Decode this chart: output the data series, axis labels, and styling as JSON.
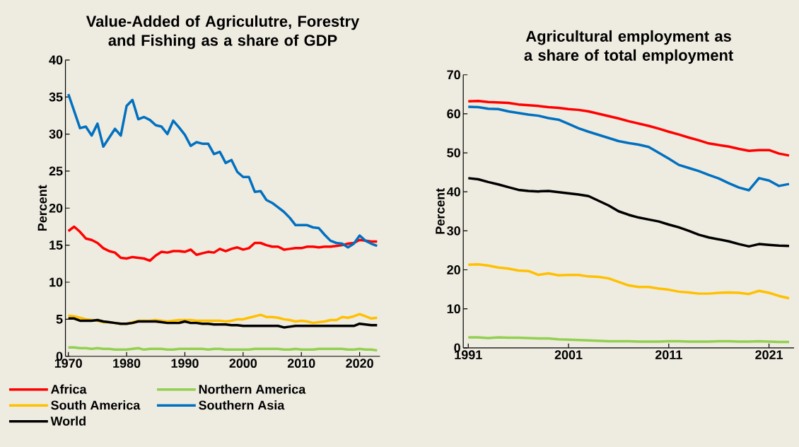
{
  "chart_data": [
    {
      "type": "line",
      "title": "Value-Added of Agriculutre, Forestry and Fishing as a share of GDP",
      "ylabel": "Percent",
      "legend": "bottom",
      "x": [
        1970,
        1971,
        1972,
        1973,
        1974,
        1975,
        1976,
        1977,
        1978,
        1979,
        1980,
        1981,
        1982,
        1983,
        1984,
        1985,
        1986,
        1987,
        1988,
        1989,
        1990,
        1991,
        1992,
        1993,
        1994,
        1995,
        1996,
        1997,
        1998,
        1999,
        2000,
        2001,
        2002,
        2003,
        2004,
        2005,
        2006,
        2007,
        2008,
        2009,
        2010,
        2011,
        2012,
        2013,
        2014,
        2015,
        2016,
        2017,
        2018,
        2019,
        2020,
        2021,
        2022,
        2023
      ],
      "xlim": [
        1969.5,
        2023.5
      ],
      "xticks": [
        1970,
        1980,
        1990,
        2000,
        2010,
        2020
      ],
      "ylim": [
        0,
        40
      ],
      "yticks": [
        0,
        5,
        10,
        15,
        20,
        25,
        30,
        35,
        40
      ],
      "series": [
        {
          "name": "Africa",
          "color": "#ff0000",
          "values": [
            16.9,
            17.5,
            16.8,
            15.9,
            15.7,
            15.3,
            14.6,
            14.2,
            14.0,
            13.3,
            13.2,
            13.4,
            13.3,
            13.2,
            12.9,
            13.6,
            14.1,
            14.0,
            14.2,
            14.2,
            14.1,
            14.4,
            13.7,
            13.9,
            14.1,
            14.0,
            14.5,
            14.2,
            14.5,
            14.7,
            14.4,
            14.6,
            15.3,
            15.3,
            15.0,
            14.8,
            14.8,
            14.4,
            14.5,
            14.6,
            14.6,
            14.8,
            14.8,
            14.7,
            14.8,
            14.8,
            14.9,
            15.0,
            15.2,
            15.3,
            15.7,
            15.6,
            15.5,
            15.5
          ]
        },
        {
          "name": "Northern America",
          "color": "#92d050",
          "values": [
            1.2,
            1.2,
            1.1,
            1.1,
            1.0,
            1.1,
            1.0,
            1.0,
            0.9,
            0.9,
            0.9,
            1.0,
            1.1,
            0.9,
            1.0,
            1.0,
            1.0,
            0.9,
            0.9,
            1.0,
            1.0,
            1.0,
            1.0,
            1.0,
            0.9,
            1.0,
            1.0,
            0.9,
            0.9,
            0.9,
            0.9,
            0.9,
            1.0,
            1.0,
            1.0,
            1.0,
            1.0,
            0.9,
            0.9,
            1.0,
            0.9,
            0.9,
            0.9,
            1.0,
            1.0,
            1.0,
            1.0,
            1.0,
            0.9,
            0.9,
            1.0,
            0.9,
            0.9,
            0.8
          ]
        },
        {
          "name": "South America",
          "color": "#ffc000",
          "values": [
            5.5,
            5.4,
            5.2,
            5.0,
            4.9,
            4.8,
            4.6,
            4.6,
            4.5,
            4.4,
            4.4,
            4.6,
            4.8,
            4.8,
            4.8,
            4.9,
            4.8,
            4.7,
            4.8,
            4.9,
            4.9,
            4.9,
            4.8,
            4.8,
            4.8,
            4.8,
            4.8,
            4.7,
            4.8,
            5.0,
            5.0,
            5.2,
            5.4,
            5.6,
            5.3,
            5.3,
            5.2,
            5.0,
            4.9,
            4.7,
            4.8,
            4.7,
            4.5,
            4.6,
            4.7,
            4.9,
            4.9,
            5.3,
            5.2,
            5.4,
            5.7,
            5.4,
            5.1,
            5.2
          ]
        },
        {
          "name": "Southern Asia",
          "color": "#0070c0",
          "values": [
            35.4,
            33.1,
            30.8,
            31.0,
            29.8,
            31.4,
            28.3,
            29.5,
            30.7,
            29.8,
            33.8,
            34.6,
            32.0,
            32.3,
            31.9,
            31.2,
            31.0,
            30.0,
            31.8,
            30.9,
            29.9,
            28.4,
            28.9,
            28.7,
            28.7,
            27.3,
            27.6,
            26.1,
            26.5,
            24.9,
            24.2,
            24.2,
            22.2,
            22.3,
            21.1,
            20.7,
            20.1,
            19.5,
            18.7,
            17.7,
            17.7,
            17.7,
            17.4,
            17.3,
            16.4,
            15.6,
            15.3,
            15.2,
            14.7,
            15.2,
            16.3,
            15.6,
            15.2,
            14.9
          ]
        },
        {
          "name": "World",
          "color": "#000000",
          "values": [
            5.1,
            5.1,
            4.8,
            4.8,
            4.8,
            4.9,
            4.7,
            4.6,
            4.5,
            4.4,
            4.4,
            4.5,
            4.7,
            4.7,
            4.7,
            4.7,
            4.6,
            4.5,
            4.5,
            4.5,
            4.7,
            4.5,
            4.5,
            4.4,
            4.4,
            4.3,
            4.3,
            4.3,
            4.2,
            4.2,
            4.1,
            4.1,
            4.1,
            4.1,
            4.1,
            4.1,
            4.1,
            3.9,
            4.0,
            4.1,
            4.1,
            4.1,
            4.1,
            4.1,
            4.1,
            4.1,
            4.1,
            4.1,
            4.1,
            4.1,
            4.4,
            4.3,
            4.2,
            4.2
          ]
        }
      ]
    },
    {
      "type": "line",
      "title": "Agricultural employment as a share of total employment",
      "ylabel": "Percent",
      "x": [
        1991,
        1992,
        1993,
        1994,
        1995,
        1996,
        1997,
        1998,
        1999,
        2000,
        2001,
        2002,
        2003,
        2004,
        2005,
        2006,
        2007,
        2008,
        2009,
        2010,
        2011,
        2012,
        2013,
        2014,
        2015,
        2016,
        2017,
        2018,
        2019,
        2020,
        2021,
        2022,
        2023
      ],
      "xlim": [
        1990.5,
        2023.5
      ],
      "xticks": [
        1991,
        2001,
        2011,
        2021
      ],
      "ylim": [
        0,
        70
      ],
      "yticks": [
        0,
        10,
        20,
        30,
        40,
        50,
        60,
        70
      ],
      "series": [
        {
          "color": "#ff0000",
          "values": [
            63.2,
            63.3,
            63.0,
            62.9,
            62.8,
            62.4,
            62.2,
            62.0,
            61.7,
            61.5,
            61.2,
            61.0,
            60.6,
            60.0,
            59.4,
            58.8,
            58.1,
            57.5,
            56.9,
            56.2,
            55.4,
            54.7,
            53.9,
            53.2,
            52.4,
            52.0,
            51.6,
            51.0,
            50.5,
            50.7,
            50.7,
            49.8,
            49.3
          ]
        },
        {
          "color": "#92d050",
          "values": [
            2.7,
            2.7,
            2.5,
            2.7,
            2.6,
            2.6,
            2.5,
            2.4,
            2.4,
            2.2,
            2.1,
            2.0,
            1.9,
            1.8,
            1.7,
            1.7,
            1.7,
            1.6,
            1.6,
            1.6,
            1.7,
            1.7,
            1.6,
            1.6,
            1.6,
            1.7,
            1.7,
            1.6,
            1.6,
            1.7,
            1.6,
            1.5,
            1.5
          ]
        },
        {
          "color": "#ffc000",
          "values": [
            21.3,
            21.4,
            21.1,
            20.6,
            20.3,
            19.8,
            19.7,
            18.7,
            19.1,
            18.6,
            18.7,
            18.7,
            18.3,
            18.2,
            17.8,
            16.9,
            16.0,
            15.6,
            15.6,
            15.2,
            14.9,
            14.4,
            14.2,
            13.9,
            13.9,
            14.1,
            14.2,
            14.1,
            13.8,
            14.6,
            14.1,
            13.3,
            12.7
          ]
        },
        {
          "color": "#0070c0",
          "values": [
            61.8,
            61.7,
            61.3,
            61.2,
            60.6,
            60.2,
            59.8,
            59.5,
            58.9,
            58.5,
            57.4,
            56.3,
            55.4,
            54.6,
            53.8,
            53.0,
            52.5,
            52.1,
            51.5,
            50.0,
            48.5,
            46.9,
            46.1,
            45.3,
            44.3,
            43.4,
            42.2,
            41.1,
            40.4,
            43.5,
            42.9,
            41.5,
            42.0
          ]
        },
        {
          "color": "#000000",
          "values": [
            43.5,
            43.2,
            42.5,
            41.9,
            41.2,
            40.5,
            40.2,
            40.1,
            40.2,
            39.9,
            39.6,
            39.3,
            38.9,
            37.7,
            36.5,
            35.0,
            34.1,
            33.4,
            32.9,
            32.4,
            31.6,
            30.9,
            30.0,
            29.0,
            28.3,
            27.8,
            27.3,
            26.6,
            26.0,
            26.6,
            26.4,
            26.2,
            26.1
          ]
        }
      ]
    }
  ]
}
